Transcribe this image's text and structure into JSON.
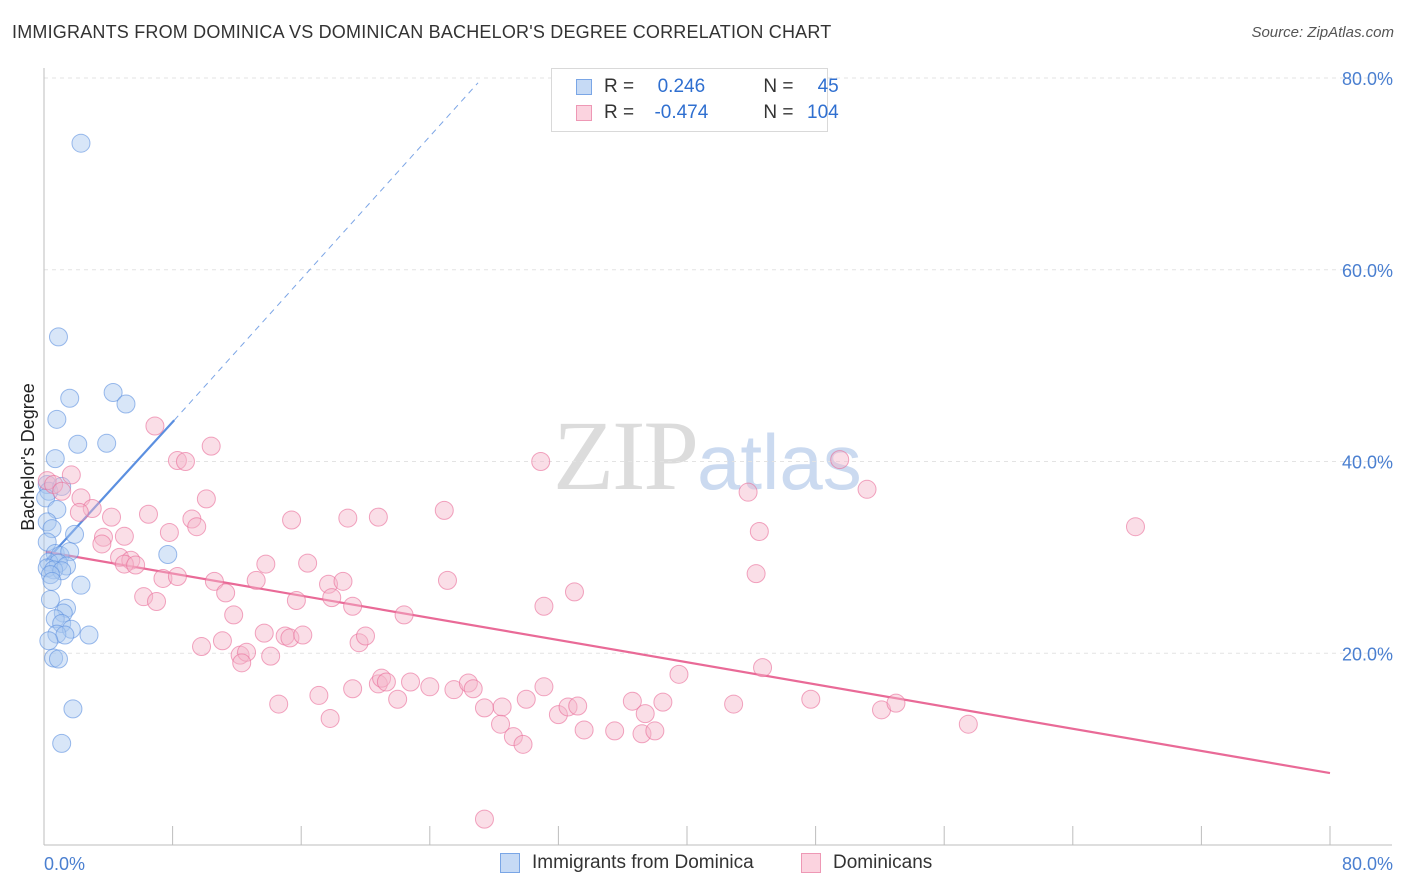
{
  "header": {
    "title": "IMMIGRANTS FROM DOMINICA VS DOMINICAN BACHELOR'S DEGREE CORRELATION CHART",
    "source": "Source: ZipAtlas.com"
  },
  "legend": {
    "rows": [
      {
        "r_label": "R = ",
        "r_value": "0.246",
        "n_label": "N = ",
        "n_value": "45",
        "color": "#a9c7f0"
      },
      {
        "r_label": "R = ",
        "r_value": "-0.474",
        "n_label": "N = ",
        "n_value": "104",
        "color": "#f5b6ca"
      }
    ]
  },
  "bottom_legend": {
    "items": [
      {
        "label": "Immigrants from Dominica",
        "color": "#a9c7f0"
      },
      {
        "label": "Dominicans",
        "color": "#f5b6ca"
      }
    ]
  },
  "watermark": {
    "zip": "ZIP",
    "atlas": "atlas"
  },
  "chart_data": {
    "type": "scatter",
    "title": "IMMIGRANTS FROM DOMINICA VS DOMINICAN BACHELOR'S DEGREE CORRELATION CHART",
    "xlabel": "",
    "ylabel": "Bachelor's Degree",
    "xlim": [
      0,
      80
    ],
    "ylim": [
      0,
      80
    ],
    "x_ticks": [
      "0.0%",
      "80.0%"
    ],
    "y_ticks": [
      "20.0%",
      "40.0%",
      "60.0%",
      "80.0%"
    ],
    "y_tick_values": [
      20,
      40,
      60,
      80
    ],
    "grid": true,
    "legend_position": "top-center",
    "series": [
      {
        "name": "Immigrants from Dominica",
        "color": "#5b8fe0",
        "fill": "#a9c7f0",
        "trend": {
          "x0": 0.1,
          "y0": 29.6,
          "x1": 8.1,
          "y1": 44.3,
          "dash_x1": 27,
          "dash_y1": 79.5
        },
        "points": [
          [
            2.3,
            73.2
          ],
          [
            0.9,
            53.0
          ],
          [
            0.8,
            44.4
          ],
          [
            1.6,
            46.6
          ],
          [
            4.3,
            47.2
          ],
          [
            5.1,
            46.0
          ],
          [
            2.1,
            41.8
          ],
          [
            3.9,
            41.9
          ],
          [
            0.7,
            40.3
          ],
          [
            0.2,
            37.6
          ],
          [
            0.3,
            36.9
          ],
          [
            1.1,
            37.4
          ],
          [
            0.1,
            36.2
          ],
          [
            0.8,
            35.0
          ],
          [
            0.2,
            33.7
          ],
          [
            0.5,
            33.0
          ],
          [
            1.9,
            32.4
          ],
          [
            0.2,
            31.6
          ],
          [
            0.7,
            30.4
          ],
          [
            1.0,
            30.2
          ],
          [
            1.6,
            30.6
          ],
          [
            0.3,
            29.5
          ],
          [
            0.9,
            29.4
          ],
          [
            1.4,
            29.1
          ],
          [
            0.2,
            28.9
          ],
          [
            0.6,
            28.7
          ],
          [
            1.1,
            28.6
          ],
          [
            0.4,
            28.2
          ],
          [
            0.5,
            27.5
          ],
          [
            2.3,
            27.1
          ],
          [
            7.7,
            30.3
          ],
          [
            0.4,
            25.6
          ],
          [
            1.4,
            24.7
          ],
          [
            1.2,
            24.2
          ],
          [
            0.7,
            23.6
          ],
          [
            1.1,
            23.1
          ],
          [
            1.7,
            22.5
          ],
          [
            0.8,
            22.0
          ],
          [
            1.3,
            21.9
          ],
          [
            2.8,
            21.9
          ],
          [
            0.6,
            19.5
          ],
          [
            0.9,
            19.4
          ],
          [
            1.8,
            14.2
          ],
          [
            1.1,
            10.6
          ],
          [
            0.3,
            21.3
          ]
        ]
      },
      {
        "name": "Dominicans",
        "color": "#e96a97",
        "fill": "#f5b6ca",
        "trend": {
          "x0": 0.1,
          "y0": 30.6,
          "x1": 80,
          "y1": 7.5
        },
        "points": [
          [
            0.2,
            38.0
          ],
          [
            0.6,
            37.6
          ],
          [
            1.1,
            36.9
          ],
          [
            1.7,
            38.6
          ],
          [
            2.3,
            36.2
          ],
          [
            3.0,
            35.1
          ],
          [
            2.2,
            34.7
          ],
          [
            4.2,
            34.2
          ],
          [
            6.9,
            43.7
          ],
          [
            8.3,
            40.1
          ],
          [
            8.8,
            40.0
          ],
          [
            10.4,
            41.6
          ],
          [
            10.1,
            36.1
          ],
          [
            6.5,
            34.5
          ],
          [
            9.2,
            34.0
          ],
          [
            9.5,
            33.2
          ],
          [
            7.8,
            32.6
          ],
          [
            5.0,
            32.2
          ],
          [
            3.7,
            32.1
          ],
          [
            3.6,
            31.4
          ],
          [
            4.7,
            30.0
          ],
          [
            5.4,
            29.7
          ],
          [
            5.0,
            29.3
          ],
          [
            5.7,
            29.2
          ],
          [
            13.8,
            29.3
          ],
          [
            15.4,
            33.9
          ],
          [
            18.9,
            34.1
          ],
          [
            20.8,
            34.2
          ],
          [
            24.9,
            34.9
          ],
          [
            30.9,
            40.0
          ],
          [
            43.8,
            36.8
          ],
          [
            44.5,
            32.7
          ],
          [
            49.5,
            40.2
          ],
          [
            51.2,
            37.1
          ],
          [
            67.9,
            33.2
          ],
          [
            7.4,
            27.8
          ],
          [
            8.3,
            28.0
          ],
          [
            10.6,
            27.5
          ],
          [
            13.2,
            27.6
          ],
          [
            16.4,
            29.4
          ],
          [
            17.7,
            27.2
          ],
          [
            18.6,
            27.5
          ],
          [
            25.1,
            27.6
          ],
          [
            44.3,
            28.3
          ],
          [
            6.2,
            25.9
          ],
          [
            7.0,
            25.4
          ],
          [
            11.3,
            26.3
          ],
          [
            15.7,
            25.5
          ],
          [
            17.9,
            25.8
          ],
          [
            19.2,
            24.9
          ],
          [
            22.4,
            24.0
          ],
          [
            31.1,
            24.9
          ],
          [
            33.0,
            26.4
          ],
          [
            11.8,
            24.0
          ],
          [
            11.1,
            21.3
          ],
          [
            12.2,
            19.8
          ],
          [
            12.6,
            20.1
          ],
          [
            12.3,
            19.0
          ],
          [
            13.7,
            22.1
          ],
          [
            14.1,
            19.7
          ],
          [
            15.0,
            21.8
          ],
          [
            15.3,
            21.6
          ],
          [
            16.1,
            21.9
          ],
          [
            19.6,
            21.1
          ],
          [
            20.0,
            21.8
          ],
          [
            9.8,
            20.7
          ],
          [
            44.7,
            18.5
          ],
          [
            39.5,
            17.8
          ],
          [
            14.6,
            14.7
          ],
          [
            17.1,
            15.6
          ],
          [
            17.8,
            13.2
          ],
          [
            19.2,
            16.3
          ],
          [
            20.8,
            16.8
          ],
          [
            21.0,
            17.4
          ],
          [
            22.0,
            15.2
          ],
          [
            22.8,
            17.0
          ],
          [
            24.0,
            16.5
          ],
          [
            25.5,
            16.2
          ],
          [
            26.4,
            16.9
          ],
          [
            26.7,
            16.3
          ],
          [
            27.4,
            14.3
          ],
          [
            28.5,
            14.4
          ],
          [
            28.4,
            12.6
          ],
          [
            30.0,
            15.2
          ],
          [
            31.1,
            16.5
          ],
          [
            32.0,
            13.6
          ],
          [
            32.6,
            14.4
          ],
          [
            33.2,
            14.5
          ],
          [
            33.6,
            12.0
          ],
          [
            35.5,
            11.9
          ],
          [
            36.6,
            15.0
          ],
          [
            37.4,
            13.7
          ],
          [
            38.5,
            14.9
          ],
          [
            37.2,
            11.6
          ],
          [
            38.0,
            11.9
          ],
          [
            42.9,
            14.7
          ],
          [
            47.7,
            15.2
          ],
          [
            52.1,
            14.1
          ],
          [
            53.0,
            14.8
          ],
          [
            57.5,
            12.6
          ],
          [
            29.2,
            11.3
          ],
          [
            29.8,
            10.5
          ],
          [
            27.4,
            2.7
          ],
          [
            21.3,
            17.0
          ]
        ]
      }
    ]
  }
}
